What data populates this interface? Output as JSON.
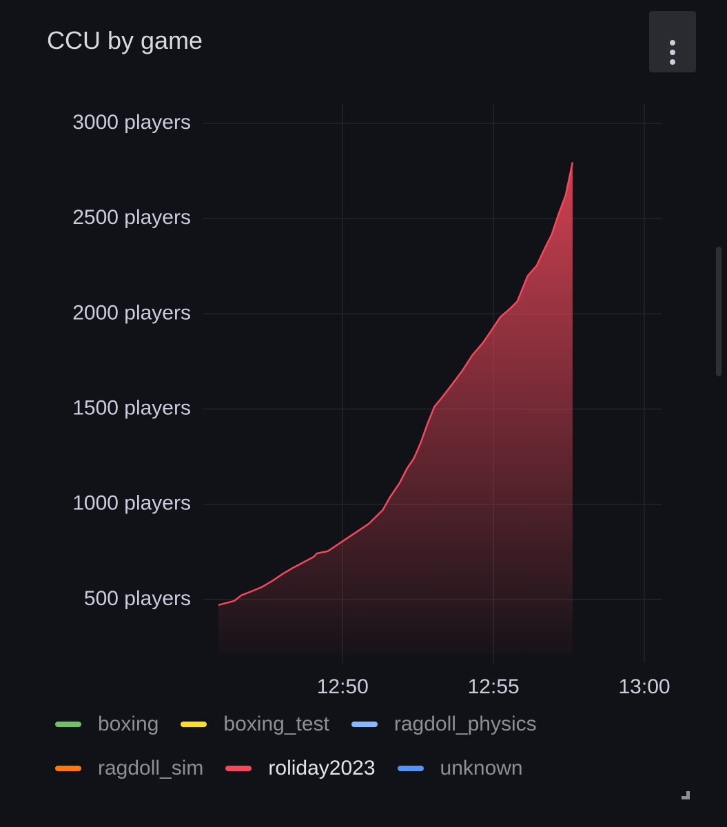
{
  "chart_data": {
    "type": "area",
    "title": "CCU by game",
    "x": [
      765.88,
      766.41,
      766.64,
      766.98,
      767.32,
      767.67,
      768.01,
      768.35,
      768.7,
      769.04,
      769.15,
      769.5,
      769.84,
      770.18,
      770.53,
      770.87,
      771.1,
      771.33,
      771.56,
      771.9,
      772.13,
      772.36,
      772.59,
      772.81,
      773.04,
      773.27,
      773.62,
      773.96,
      774.3,
      774.65,
      774.92,
      775.22,
      775.56,
      775.79,
      776.13,
      776.43,
      776.7,
      776.93,
      777.16,
      777.39,
      777.62
    ],
    "series": [
      {
        "name": "boxing",
        "color": "#73bf69",
        "values": [
          null,
          null,
          null,
          null,
          null,
          null,
          null,
          null,
          null,
          null,
          null,
          null,
          null,
          null,
          null,
          null,
          null,
          null,
          null,
          null,
          null,
          null,
          null,
          null,
          null,
          null,
          null,
          null,
          null,
          null,
          null,
          null,
          null,
          null,
          null,
          null,
          null,
          null,
          null,
          null,
          null
        ]
      },
      {
        "name": "boxing_test",
        "color": "#fade2a",
        "values": [
          null,
          null,
          null,
          null,
          null,
          null,
          null,
          null,
          null,
          null,
          null,
          null,
          null,
          null,
          null,
          null,
          null,
          null,
          null,
          null,
          null,
          null,
          null,
          null,
          null,
          null,
          null,
          null,
          null,
          null,
          null,
          null,
          null,
          null,
          null,
          null,
          null,
          null,
          null,
          null,
          null
        ]
      },
      {
        "name": "ragdoll_physics",
        "color": "#8ab8ff",
        "values": [
          null,
          null,
          null,
          null,
          null,
          null,
          null,
          null,
          null,
          null,
          null,
          null,
          null,
          null,
          null,
          null,
          null,
          null,
          null,
          null,
          null,
          null,
          null,
          null,
          null,
          null,
          null,
          null,
          null,
          null,
          null,
          null,
          null,
          null,
          null,
          null,
          null,
          null,
          null,
          null,
          null
        ]
      },
      {
        "name": "ragdoll_sim",
        "color": "#ff780a",
        "values": [
          null,
          null,
          null,
          null,
          null,
          null,
          null,
          null,
          null,
          null,
          null,
          null,
          null,
          null,
          null,
          null,
          null,
          null,
          null,
          null,
          null,
          null,
          null,
          null,
          null,
          null,
          null,
          null,
          null,
          null,
          null,
          null,
          null,
          null,
          null,
          null,
          null,
          null,
          null,
          null,
          null
        ]
      },
      {
        "name": "roliday2023",
        "color": "#f2495c",
        "values": [
          471,
          493,
          522,
          543,
          565,
          598,
          634,
          666,
          695,
          724,
          742,
          753,
          789,
          825,
          862,
          898,
          934,
          970,
          1035,
          1115,
          1187,
          1241,
          1324,
          1422,
          1512,
          1556,
          1628,
          1700,
          1783,
          1848,
          1910,
          1982,
          2029,
          2065,
          2199,
          2253,
          2344,
          2416,
          2525,
          2622,
          2796
        ]
      },
      {
        "name": "unknown",
        "color": "#5794f2",
        "values": [
          null,
          null,
          null,
          null,
          null,
          null,
          null,
          null,
          null,
          null,
          null,
          null,
          null,
          null,
          null,
          null,
          null,
          null,
          null,
          null,
          null,
          null,
          null,
          null,
          null,
          null,
          null,
          null,
          null,
          null,
          null,
          null,
          null,
          null,
          null,
          null,
          null,
          null,
          null,
          null,
          null
        ]
      }
    ],
    "xlim": [
      765.38,
      780.57
    ],
    "xticks": [
      {
        "value": 770,
        "label": "12:50"
      },
      {
        "value": 775,
        "label": "12:55"
      },
      {
        "value": 780,
        "label": "13:00"
      }
    ],
    "ylim": [
      210,
      3105
    ],
    "yticks": [
      {
        "value": 500,
        "label": "500 players"
      },
      {
        "value": 1000,
        "label": "1000 players"
      },
      {
        "value": 1500,
        "label": "1500 players"
      },
      {
        "value": 2000,
        "label": "2000 players"
      },
      {
        "value": 2500,
        "label": "2500 players"
      },
      {
        "value": 3000,
        "label": "3000 players"
      }
    ],
    "grid": true
  }
}
